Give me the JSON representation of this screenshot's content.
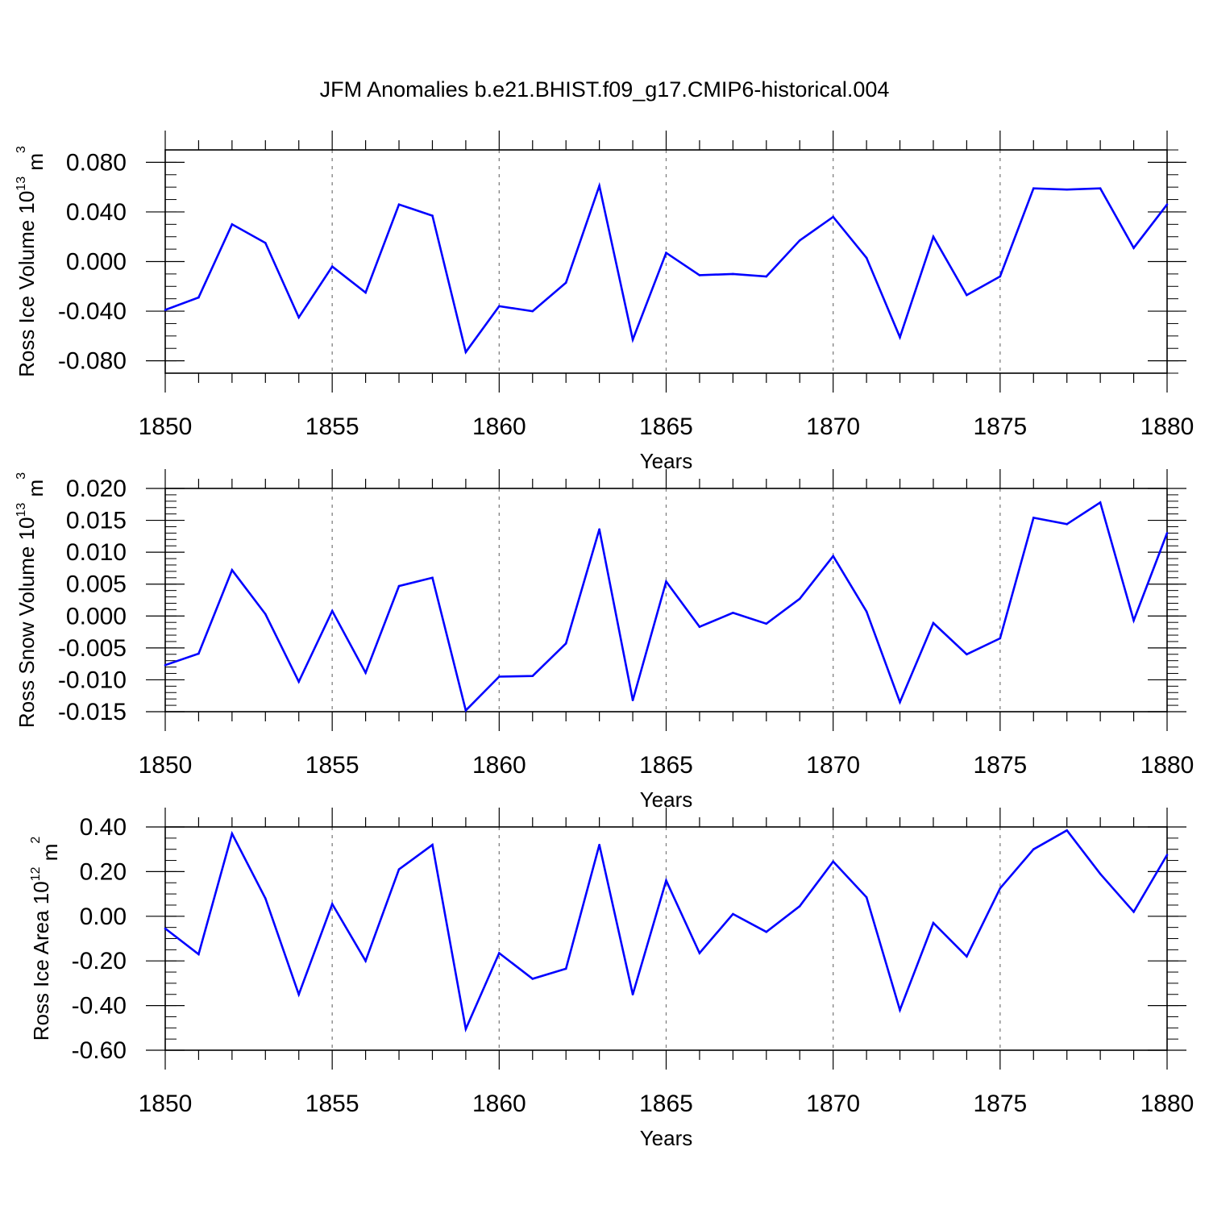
{
  "title": "JFM Anomalies b.e21.BHIST.f09_g17.CMIP6-historical.004",
  "colors": {
    "line": "#0000ff",
    "axis": "#000000",
    "grid": "#808080"
  },
  "chart_data": [
    {
      "type": "line",
      "ylabel": "Ross Ice Volume 10",
      "ylabel_exp": "13",
      "ylabel_unit": " m",
      "ylabel_unit_exp": "3",
      "xlabel": "Years",
      "xlim": [
        1850,
        1880
      ],
      "ylim": [
        -0.09,
        0.09
      ],
      "yticks": [
        -0.08,
        -0.04,
        0.0,
        0.04,
        0.08
      ],
      "yticklabels": [
        "-0.080",
        "-0.040",
        "0.000",
        "0.040",
        "0.080"
      ],
      "yminor": 0.01,
      "xticks": [
        1850,
        1855,
        1860,
        1865,
        1870,
        1875,
        1880
      ],
      "xticklabels": [
        "1850",
        "1855",
        "1860",
        "1865",
        "1870",
        "1875",
        "1880"
      ],
      "grid": "vertical dashed at major x ticks",
      "x": [
        1850,
        1851,
        1852,
        1853,
        1854,
        1855,
        1856,
        1857,
        1858,
        1859,
        1860,
        1861,
        1862,
        1863,
        1864,
        1865,
        1866,
        1867,
        1868,
        1869,
        1870,
        1871,
        1872,
        1873,
        1874,
        1875,
        1876,
        1877,
        1878,
        1879,
        1880
      ],
      "values": [
        -0.039,
        -0.029,
        0.03,
        0.015,
        -0.045,
        -0.004,
        -0.025,
        0.046,
        0.037,
        -0.073,
        -0.036,
        -0.04,
        -0.017,
        0.061,
        -0.063,
        0.007,
        -0.011,
        -0.01,
        -0.012,
        0.017,
        0.036,
        0.003,
        -0.061,
        0.02,
        -0.027,
        -0.012,
        0.059,
        0.058,
        0.059,
        0.011,
        0.046
      ]
    },
    {
      "type": "line",
      "ylabel": "Ross Snow Volume 10",
      "ylabel_exp": "13",
      "ylabel_unit": " m",
      "ylabel_unit_exp": "3",
      "xlabel": "Years",
      "xlim": [
        1850,
        1880
      ],
      "ylim": [
        -0.015,
        0.02
      ],
      "yticks": [
        -0.015,
        -0.01,
        -0.005,
        0.0,
        0.005,
        0.01,
        0.015,
        0.02
      ],
      "yticklabels": [
        "-0.015",
        "-0.010",
        "-0.005",
        "0.000",
        "0.005",
        "0.010",
        "0.015",
        "0.020"
      ],
      "yminor": 0.001,
      "xticks": [
        1850,
        1855,
        1860,
        1865,
        1870,
        1875,
        1880
      ],
      "xticklabels": [
        "1850",
        "1855",
        "1860",
        "1865",
        "1870",
        "1875",
        "1880"
      ],
      "grid": "vertical dashed at major x ticks",
      "x": [
        1850,
        1851,
        1852,
        1853,
        1854,
        1855,
        1856,
        1857,
        1858,
        1859,
        1860,
        1861,
        1862,
        1863,
        1864,
        1865,
        1866,
        1867,
        1868,
        1869,
        1870,
        1871,
        1872,
        1873,
        1874,
        1875,
        1876,
        1877,
        1878,
        1879,
        1880
      ],
      "values": [
        -0.0077,
        -0.0059,
        0.0072,
        0.0003,
        -0.0103,
        0.0008,
        -0.0089,
        0.0047,
        0.006,
        -0.0148,
        -0.0095,
        -0.0094,
        -0.0043,
        0.0136,
        -0.0132,
        0.0054,
        -0.0017,
        0.0005,
        -0.0012,
        0.0027,
        0.0094,
        0.0007,
        -0.0135,
        -0.0011,
        -0.006,
        -0.0035,
        0.0154,
        0.0144,
        0.0178,
        -0.0007,
        0.013
      ]
    },
    {
      "type": "line",
      "ylabel": "Ross Ice Area 10",
      "ylabel_exp": "12",
      "ylabel_unit": " m",
      "ylabel_unit_exp": "2",
      "xlabel": "Years",
      "xlim": [
        1850,
        1880
      ],
      "ylim": [
        -0.6,
        0.4
      ],
      "yticks": [
        -0.6,
        -0.4,
        -0.2,
        0.0,
        0.2,
        0.4
      ],
      "yticklabels": [
        "-0.60",
        "-0.40",
        "-0.20",
        "0.00",
        "0.20",
        "0.40"
      ],
      "yminor": 0.05,
      "xticks": [
        1850,
        1855,
        1860,
        1865,
        1870,
        1875,
        1880
      ],
      "xticklabels": [
        "1850",
        "1855",
        "1860",
        "1865",
        "1870",
        "1875",
        "1880"
      ],
      "grid": "vertical dashed at major x ticks",
      "x": [
        1850,
        1851,
        1852,
        1853,
        1854,
        1855,
        1856,
        1857,
        1858,
        1859,
        1860,
        1861,
        1862,
        1863,
        1864,
        1865,
        1866,
        1867,
        1868,
        1869,
        1870,
        1871,
        1872,
        1873,
        1874,
        1875,
        1876,
        1877,
        1878,
        1879,
        1880
      ],
      "values": [
        -0.055,
        -0.17,
        0.37,
        0.08,
        -0.35,
        0.055,
        -0.2,
        0.21,
        0.32,
        -0.505,
        -0.165,
        -0.28,
        -0.235,
        0.32,
        -0.35,
        0.16,
        -0.165,
        0.01,
        -0.07,
        0.045,
        0.245,
        0.085,
        -0.42,
        -0.03,
        -0.18,
        0.125,
        0.3,
        0.385,
        0.19,
        0.02,
        0.275
      ]
    }
  ]
}
